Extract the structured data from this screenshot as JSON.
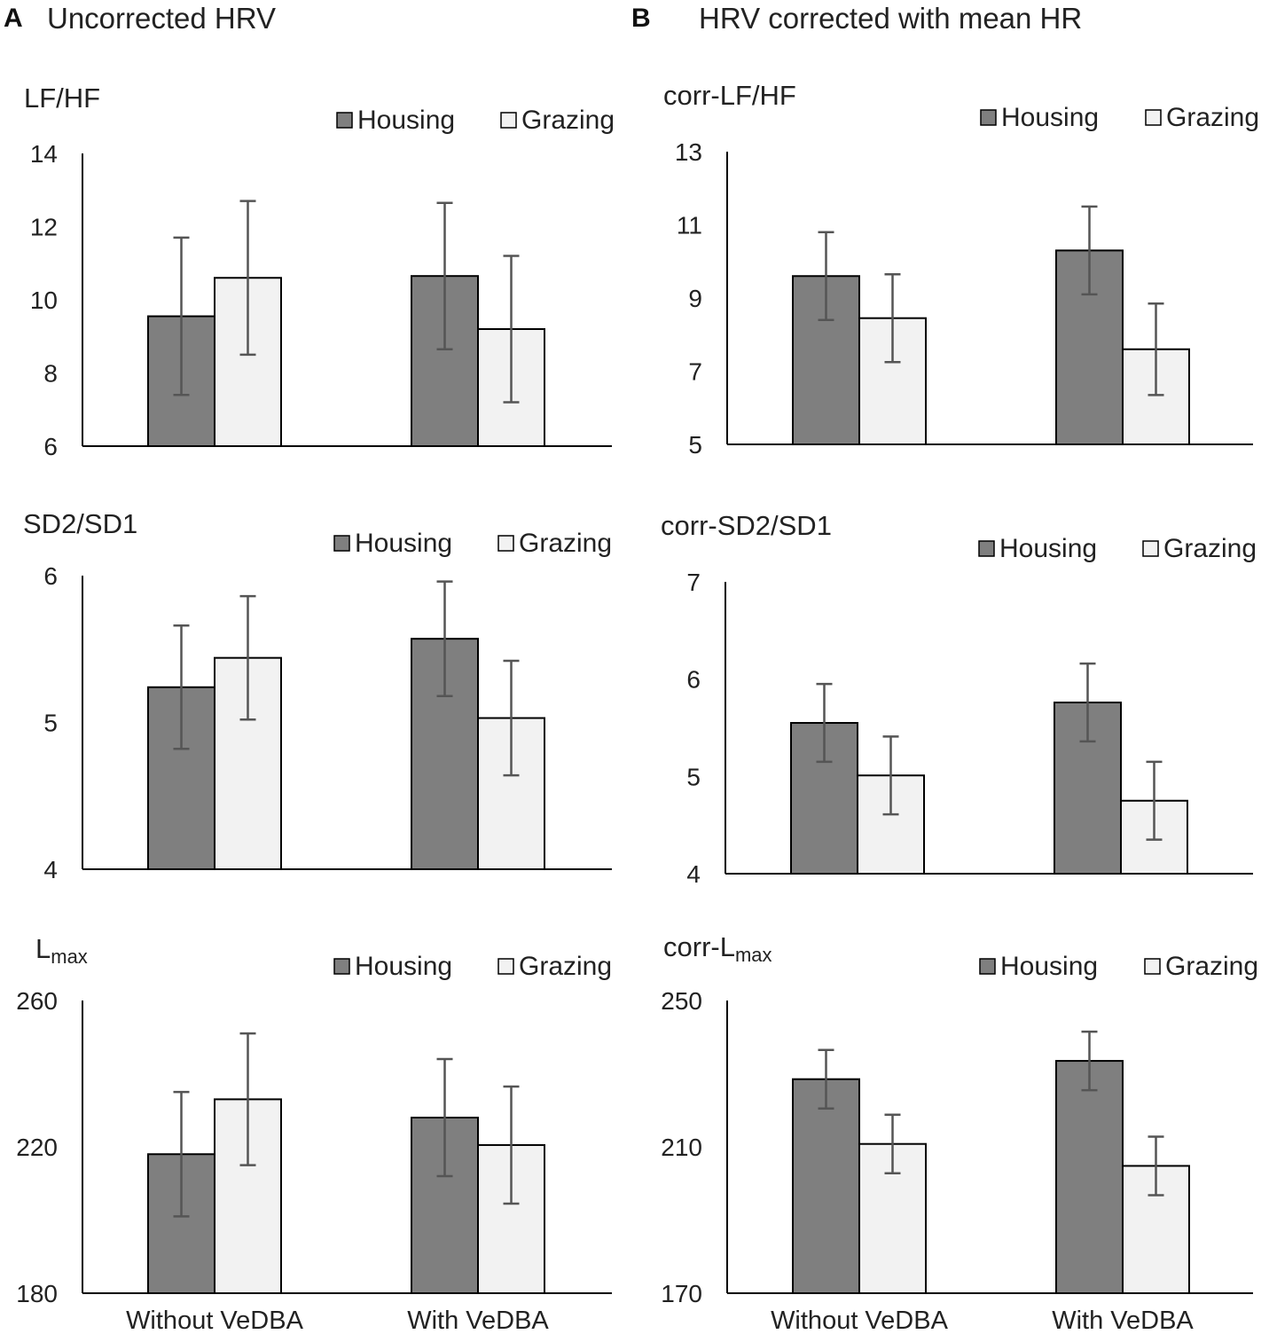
{
  "panels": {
    "A": {
      "letter": "A",
      "title": "Uncorrected HRV"
    },
    "B": {
      "letter": "B",
      "title": "HRV corrected with mean HR"
    }
  },
  "colors": {
    "housing": "#7f7f7f",
    "grazing": "#f2f2f2",
    "bar_stroke": "#000000",
    "error": "#555555"
  },
  "chart_data": [
    {
      "id": "lfhf",
      "type": "bar",
      "title": "LF/HF",
      "title_sub": "",
      "categories": [
        "Without VeDBA",
        "With VeDBA"
      ],
      "series": [
        {
          "name": "Housing",
          "values": [
            9.55,
            10.65
          ],
          "errors": [
            2.15,
            2.0
          ]
        },
        {
          "name": "Grazing",
          "values": [
            10.6,
            9.2
          ],
          "errors": [
            2.1,
            2.0
          ]
        }
      ],
      "ylim": [
        6,
        14
      ],
      "yticks": [
        6,
        8,
        10,
        12,
        14
      ],
      "legend": "top-right"
    },
    {
      "id": "corr-lfhf",
      "type": "bar",
      "title": "corr-LF/HF",
      "title_sub": "",
      "categories": [
        "Without VeDBA",
        "With VeDBA"
      ],
      "series": [
        {
          "name": "Housing",
          "values": [
            9.6,
            10.3
          ],
          "errors": [
            1.2,
            1.2
          ]
        },
        {
          "name": "Grazing",
          "values": [
            8.45,
            7.6
          ],
          "errors": [
            1.2,
            1.25
          ]
        }
      ],
      "ylim": [
        5,
        13
      ],
      "yticks": [
        5,
        7,
        9,
        11,
        13
      ],
      "legend": "top-right"
    },
    {
      "id": "sd2sd1",
      "type": "bar",
      "title": "SD2/SD1",
      "title_sub": "",
      "categories": [
        "Without VeDBA",
        "With VeDBA"
      ],
      "series": [
        {
          "name": "Housing",
          "values": [
            5.24,
            5.57
          ],
          "errors": [
            0.42,
            0.39
          ]
        },
        {
          "name": "Grazing",
          "values": [
            5.44,
            5.03
          ],
          "errors": [
            0.42,
            0.39
          ]
        }
      ],
      "ylim": [
        4,
        6
      ],
      "yticks": [
        4,
        5,
        6
      ],
      "legend": "top-right"
    },
    {
      "id": "corr-sd2sd1",
      "type": "bar",
      "title": "corr-SD2/SD1",
      "title_sub": "",
      "categories": [
        "Without VeDBA",
        "With VeDBA"
      ],
      "series": [
        {
          "name": "Housing",
          "values": [
            5.55,
            5.76
          ],
          "errors": [
            0.4,
            0.4
          ]
        },
        {
          "name": "Grazing",
          "values": [
            5.01,
            4.75
          ],
          "errors": [
            0.4,
            0.4
          ]
        }
      ],
      "ylim": [
        4,
        7
      ],
      "yticks": [
        4,
        5,
        6,
        7
      ],
      "legend": "top-right"
    },
    {
      "id": "lmax",
      "type": "bar",
      "title": "L",
      "title_sub": "max",
      "categories": [
        "Without VeDBA",
        "With VeDBA"
      ],
      "series": [
        {
          "name": "Housing",
          "values": [
            218,
            228
          ],
          "errors": [
            17,
            16
          ]
        },
        {
          "name": "Grazing",
          "values": [
            233,
            220.5
          ],
          "errors": [
            18,
            16
          ]
        }
      ],
      "ylim": [
        180,
        260
      ],
      "yticks": [
        180,
        220,
        260
      ],
      "legend": "top-right"
    },
    {
      "id": "corr-lmax",
      "type": "bar",
      "title": "corr-L",
      "title_sub": "max",
      "categories": [
        "Without VeDBA",
        "With VeDBA"
      ],
      "series": [
        {
          "name": "Housing",
          "values": [
            228.5,
            233.5
          ],
          "errors": [
            8,
            8
          ]
        },
        {
          "name": "Grazing",
          "values": [
            210.8,
            204.8
          ],
          "errors": [
            8,
            8
          ]
        }
      ],
      "ylim": [
        170,
        250
      ],
      "yticks": [
        170,
        210,
        250
      ],
      "legend": "top-right"
    }
  ]
}
